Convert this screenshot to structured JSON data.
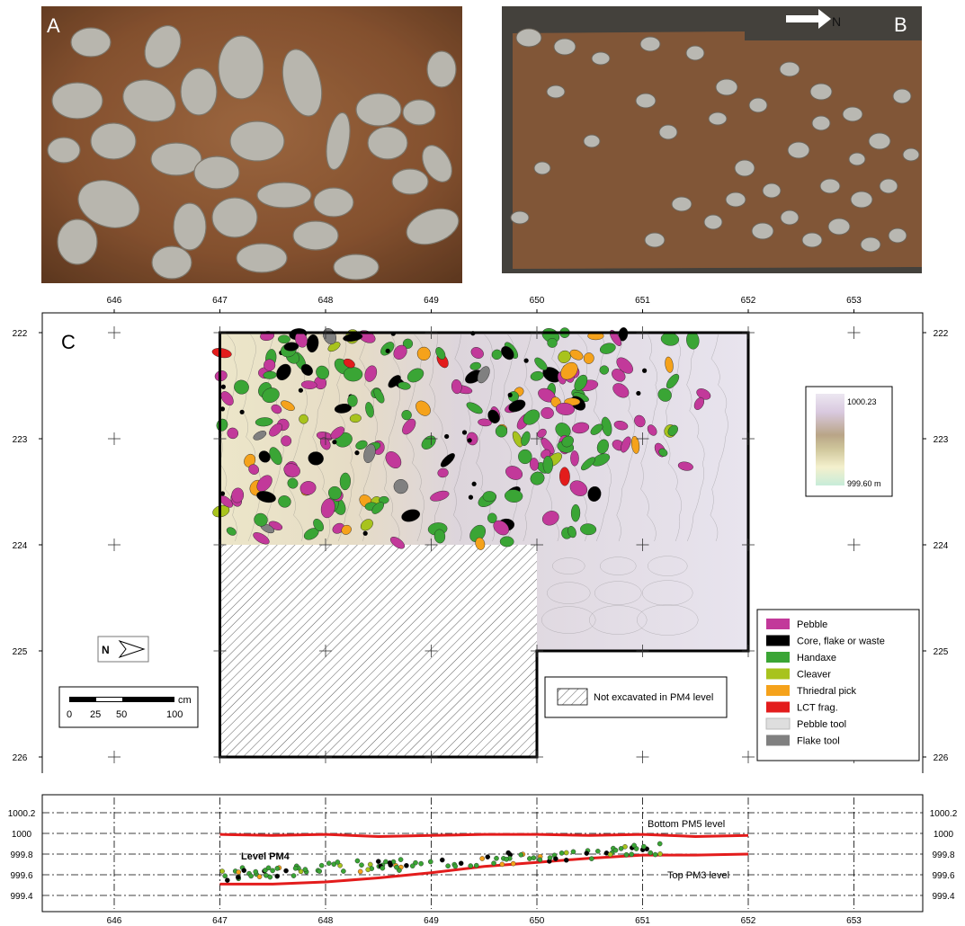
{
  "panels": {
    "a": {
      "letter": "A"
    },
    "b": {
      "letter": "B",
      "north_label": "N"
    },
    "c": {
      "letter": "C"
    }
  },
  "map": {
    "x_ticks": [
      "646",
      "647",
      "648",
      "649",
      "650",
      "651",
      "652",
      "653"
    ],
    "y_ticks": [
      "222",
      "223",
      "224",
      "225",
      "226"
    ],
    "x_range": [
      645.1,
      653.85
    ],
    "y_range": [
      221.8,
      226.1
    ],
    "excavated_area": {
      "x": [
        647,
        652
      ],
      "y": [
        222,
        225
      ]
    },
    "unexcavated_area": {
      "x": [
        647,
        650
      ],
      "y": [
        224,
        226
      ]
    },
    "elevation_legend": {
      "max": "1000.23",
      "min": "999.60 m",
      "colors": [
        "#e8e4ef",
        "#d8c8de",
        "#bfab8c",
        "#c9c29a",
        "#f3f0c9",
        "#cfeedd"
      ]
    },
    "hatch_legend": "Not excavated in PM4 level",
    "north_arrow": "N",
    "scale_bar": {
      "unit": "cm",
      "labels": [
        "0",
        "25",
        "50",
        "100"
      ]
    },
    "legend": [
      {
        "label": "Pebble",
        "color": "#c2399a"
      },
      {
        "label": "Core, flake or waste",
        "color": "#000000"
      },
      {
        "label": "Handaxe",
        "color": "#3aa535"
      },
      {
        "label": "Cleaver",
        "color": "#a8c31d"
      },
      {
        "label": "Thriedral pick",
        "color": "#f5a21b"
      },
      {
        "label": "LCT frag.",
        "color": "#e31c1c"
      },
      {
        "label": "Pebble tool",
        "color": "#dedede"
      },
      {
        "label": "Flake tool",
        "color": "#808080"
      }
    ]
  },
  "section": {
    "x_ticks": [
      "646",
      "647",
      "648",
      "649",
      "650",
      "651",
      "652",
      "653"
    ],
    "y_ticks": [
      "1000.2",
      "1000",
      "999.8",
      "999.6",
      "999.4"
    ],
    "label_level": "Level PM4",
    "label_bottom": "Bottom PM5 level",
    "label_top": "Top PM3 level",
    "line_color": "#e31c1c"
  }
}
